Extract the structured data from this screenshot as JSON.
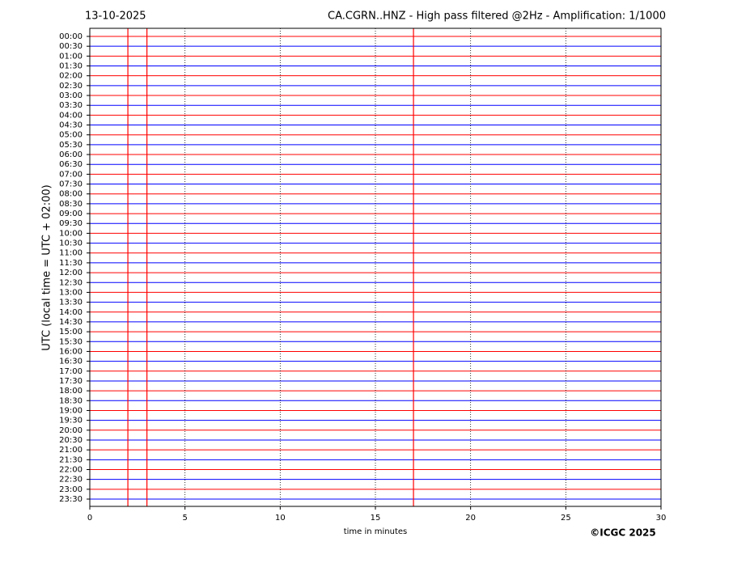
{
  "chart_data": {
    "type": "helicorder",
    "date": "13-10-2025",
    "title": "CA.CGRN..HNZ - High pass filtered @2Hz - Amplification: 1/1000",
    "ylabel": "UTC (local time = UTC + 02:00)",
    "xlabel": "time in minutes",
    "credit": "©ICGC 2025",
    "categories": [
      "00:00",
      "00:30",
      "01:00",
      "01:30",
      "02:00",
      "02:30",
      "03:00",
      "03:30",
      "04:00",
      "04:30",
      "05:00",
      "05:30",
      "06:00",
      "06:30",
      "07:00",
      "07:30",
      "08:00",
      "08:30",
      "09:00",
      "09:30",
      "10:00",
      "10:30",
      "11:00",
      "11:30",
      "12:00",
      "12:30",
      "13:00",
      "13:30",
      "14:00",
      "14:30",
      "15:00",
      "15:30",
      "16:00",
      "16:30",
      "17:00",
      "17:30",
      "18:00",
      "18:30",
      "19:00",
      "19:30",
      "20:00",
      "20:30",
      "21:00",
      "21:30",
      "22:00",
      "22:30",
      "23:00",
      "23:30"
    ],
    "colors": [
      "#ff0000",
      "#0000ff"
    ],
    "xlim": [
      0,
      30
    ],
    "xticks": [
      0,
      5,
      10,
      15,
      20,
      25,
      30
    ],
    "grid": true,
    "events": [
      2,
      3,
      17
    ]
  }
}
